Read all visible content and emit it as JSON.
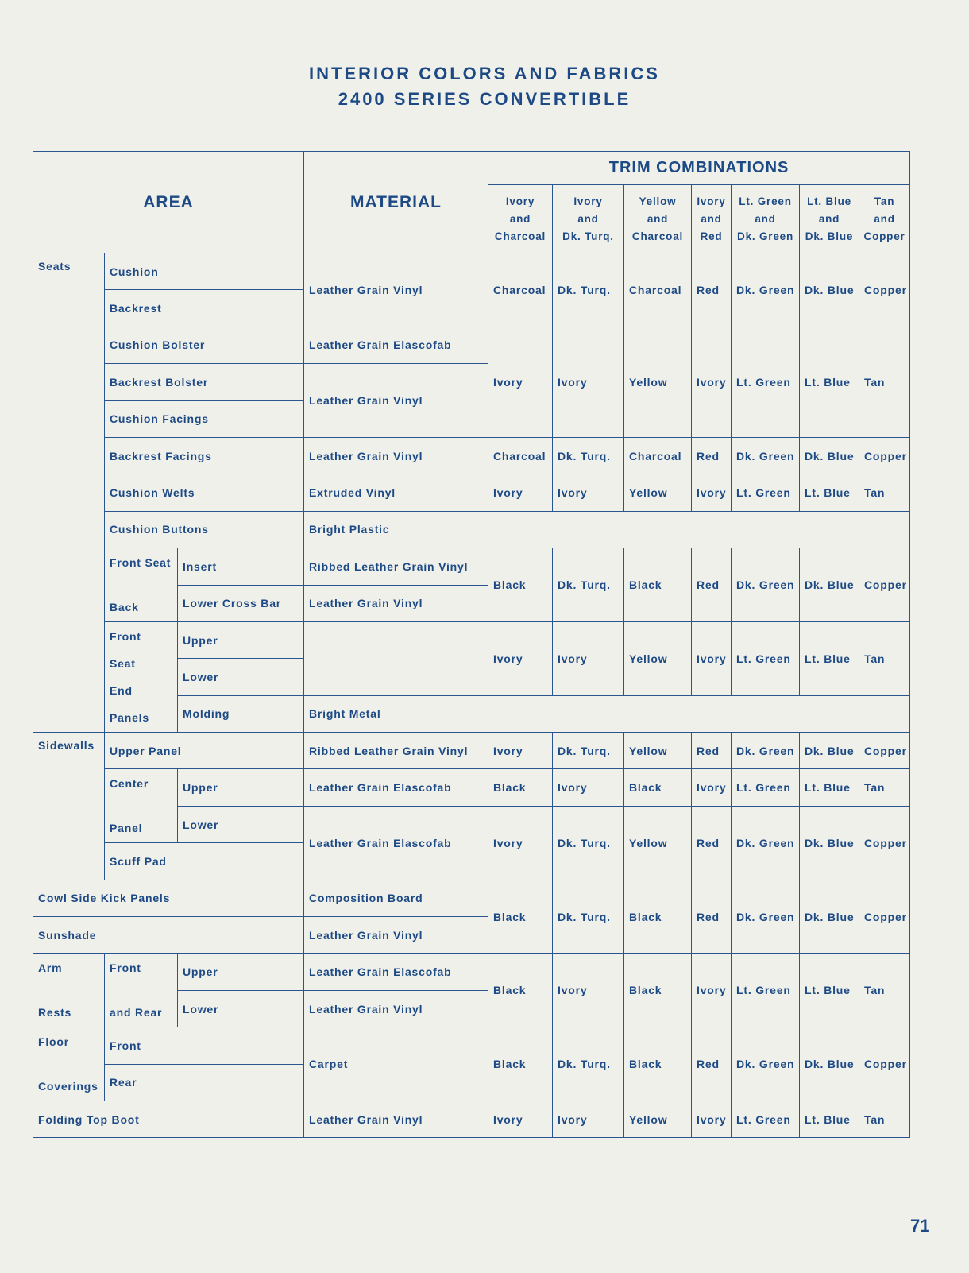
{
  "title_line1": "INTERIOR COLORS AND FABRICS",
  "title_line2": "2400 SERIES CONVERTIBLE",
  "header": {
    "area": "AREA",
    "material": "MATERIAL",
    "trim": "TRIM COMBINATIONS",
    "combos": [
      [
        "Ivory",
        "and",
        "Charcoal"
      ],
      [
        "Ivory",
        "and",
        "Dk. Turq."
      ],
      [
        "Yellow",
        "and",
        "Charcoal"
      ],
      [
        "Ivory",
        "and",
        "Red"
      ],
      [
        "Lt. Green",
        "and",
        "Dk. Green"
      ],
      [
        "Lt. Blue",
        "and",
        "Dk. Blue"
      ],
      [
        "Tan",
        "and",
        "Copper"
      ]
    ]
  },
  "rows": [
    [
      "Seats",
      "Cushion",
      "Leather Grain Vinyl",
      "Charcoal",
      "Dk. Turq.",
      "Charcoal",
      "Red",
      "Dk. Green",
      "Dk. Blue",
      "Copper"
    ],
    [
      "Backrest"
    ],
    [
      "Cushion Bolster",
      "Leather Grain Elascofab",
      "Ivory",
      "Ivory",
      "Yellow",
      "Ivory",
      "Lt. Green",
      "Lt. Blue",
      "Tan"
    ],
    [
      "Backrest Bolster",
      "Leather Grain Vinyl"
    ],
    [
      "Cushion Facings"
    ],
    [
      "Backrest Facings",
      "Leather Grain Vinyl",
      "Charcoal",
      "Dk. Turq.",
      "Charcoal",
      "Red",
      "Dk. Green",
      "Dk. Blue",
      "Copper"
    ],
    [
      "Cushion Welts",
      "Extruded Vinyl",
      "Ivory",
      "Ivory",
      "Yellow",
      "Ivory",
      "Lt. Green",
      "Lt. Blue",
      "Tan"
    ],
    [
      "Cushion Buttons",
      "Bright Plastic"
    ],
    [
      [
        "Front Seat",
        "Back"
      ],
      "Insert",
      "Ribbed Leather Grain Vinyl",
      "Black",
      "Dk. Turq.",
      "Black",
      "Red",
      "Dk. Green",
      "Dk. Blue",
      "Copper"
    ],
    [
      "Lower Cross Bar",
      "Leather Grain Vinyl"
    ],
    [
      [
        "Front",
        "Seat",
        "End",
        "Panels"
      ],
      "Upper",
      "",
      "Ivory",
      "Ivory",
      "Yellow",
      "Ivory",
      "Lt. Green",
      "Lt. Blue",
      "Tan"
    ],
    [
      "Lower"
    ],
    [
      "Molding",
      "Bright Metal"
    ],
    [
      "Sidewalls",
      "Upper Panel",
      "Ribbed Leather Grain Vinyl",
      "Ivory",
      "Dk. Turq.",
      "Yellow",
      "Red",
      "Dk. Green",
      "Dk. Blue",
      "Copper"
    ],
    [
      [
        "Center",
        "Panel"
      ],
      "Upper",
      "Leather Grain Elascofab",
      "Black",
      "Ivory",
      "Black",
      "Ivory",
      "Lt. Green",
      "Lt. Blue",
      "Tan"
    ],
    [
      "Lower",
      "Leather Grain Elascofab",
      "Ivory",
      "Dk. Turq.",
      "Yellow",
      "Red",
      "Dk. Green",
      "Dk. Blue",
      "Copper"
    ],
    [
      "Scuff Pad"
    ],
    [
      "Cowl Side Kick Panels",
      "Composition Board",
      "Black",
      "Dk. Turq.",
      "Black",
      "Red",
      "Dk. Green",
      "Dk. Blue",
      "Copper"
    ],
    [
      "Sunshade",
      "Leather Grain Vinyl"
    ],
    [
      [
        "Arm",
        "Rests"
      ],
      [
        "Front",
        "and Rear"
      ],
      "Upper",
      "Leather Grain Elascofab",
      "Black",
      "Ivory",
      "Black",
      "Ivory",
      "Lt. Green",
      "Lt. Blue",
      "Tan"
    ],
    [
      "Lower",
      "Leather Grain Vinyl"
    ],
    [
      [
        "Floor",
        "Coverings"
      ],
      "Front",
      "Carpet",
      "Black",
      "Dk. Turq.",
      "Black",
      "Red",
      "Dk. Green",
      "Dk. Blue",
      "Copper"
    ],
    [
      "Rear"
    ],
    [
      "Folding Top Boot",
      "Leather Grain Vinyl",
      "Ivory",
      "Ivory",
      "Yellow",
      "Ivory",
      "Lt. Green",
      "Lt. Blue",
      "Tan"
    ]
  ],
  "page_number": "71"
}
